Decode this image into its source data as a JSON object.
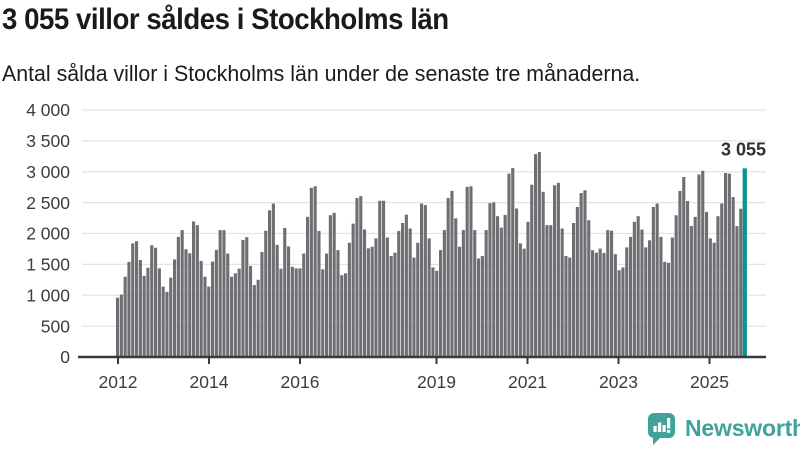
{
  "header": {
    "title": "3 055 villor såldes i Stockholms län",
    "subtitle": "Antal sålda villor i Stockholms län under de senaste tre månaderna."
  },
  "chart_data": {
    "type": "bar",
    "title": "3 055 villor såldes i Stockholms län",
    "subtitle": "Antal sålda villor i Stockholms län under de senaste tre månaderna.",
    "frequency": "monthly",
    "start_year": 2012,
    "ylim": [
      0,
      4000
    ],
    "grid": "horizontal",
    "bar_color": "#6e6e73",
    "highlight": {
      "value": 3055,
      "label": "3 055",
      "color": "#0a948e"
    },
    "yticks": [
      {
        "value": 0,
        "label": "0"
      },
      {
        "value": 500,
        "label": "500"
      },
      {
        "value": 1000,
        "label": "1 000"
      },
      {
        "value": 1500,
        "label": "1 500"
      },
      {
        "value": 2000,
        "label": "2 000"
      },
      {
        "value": 2500,
        "label": "2 500"
      },
      {
        "value": 3000,
        "label": "3 000"
      },
      {
        "value": 3500,
        "label": "3 500"
      },
      {
        "value": 4000,
        "label": "4 000"
      }
    ],
    "xticks": [
      {
        "year": 2012,
        "label": "2012"
      },
      {
        "year": 2014,
        "label": "2014"
      },
      {
        "year": 2016,
        "label": "2016"
      },
      {
        "year": 2019,
        "label": "2019"
      },
      {
        "year": 2021,
        "label": "2021"
      },
      {
        "year": 2023,
        "label": "2023"
      },
      {
        "year": 2025,
        "label": "2025"
      }
    ],
    "values": [
      960,
      1010,
      1300,
      1540,
      1840,
      1875,
      1570,
      1315,
      1445,
      1810,
      1770,
      1435,
      1140,
      1055,
      1285,
      1580,
      1945,
      2055,
      1745,
      1680,
      2195,
      2135,
      1555,
      1300,
      1140,
      1545,
      1735,
      2055,
      2055,
      1675,
      1300,
      1355,
      1430,
      1895,
      1940,
      1475,
      1165,
      1250,
      1700,
      2045,
      2375,
      2485,
      1815,
      1430,
      2090,
      1790,
      1460,
      1435,
      1435,
      1675,
      2270,
      2740,
      2765,
      2040,
      1420,
      1675,
      2295,
      2335,
      1730,
      1325,
      1355,
      1850,
      2160,
      2575,
      2605,
      2065,
      1760,
      1785,
      1920,
      2530,
      2530,
      1935,
      1635,
      1690,
      2040,
      2170,
      2305,
      2080,
      1610,
      1850,
      2485,
      2460,
      1920,
      1450,
      1395,
      1730,
      2055,
      2575,
      2690,
      2245,
      1785,
      2055,
      2755,
      2765,
      2055,
      1595,
      1635,
      2055,
      2490,
      2505,
      2280,
      2095,
      2300,
      2970,
      3060,
      2405,
      1840,
      1755,
      2190,
      2790,
      3285,
      3320,
      2675,
      2135,
      2135,
      2780,
      2820,
      2080,
      1635,
      1610,
      2170,
      2430,
      2655,
      2700,
      2215,
      1730,
      1690,
      1755,
      1685,
      2055,
      2045,
      1665,
      1405,
      1450,
      1775,
      1945,
      2190,
      2280,
      2065,
      1775,
      1890,
      2430,
      2485,
      1945,
      1540,
      1525,
      1935,
      2295,
      2690,
      2915,
      2525,
      2120,
      2270,
      2955,
      3015,
      2350,
      1920,
      1850,
      2280,
      2485,
      2980,
      2970,
      2590,
      2120,
      2400,
      3055
    ],
    "axis_colors": {
      "grid": "#e4e4e4",
      "axis": "#3a3a3a",
      "tick_text": "#3d3d3d",
      "annotation_text": "#2f2f2f"
    }
  },
  "footer": {
    "brand": "Newsworthy",
    "brand_color": "#3fa29b",
    "logo_icon": "bar-chart-speech-bubble-icon"
  }
}
